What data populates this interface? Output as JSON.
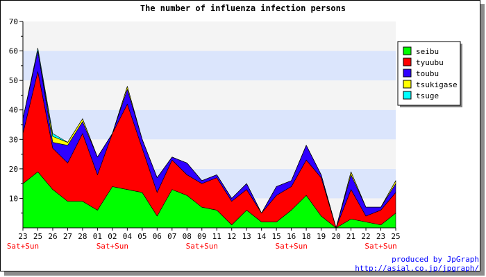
{
  "chart_data": {
    "type": "area",
    "stacked": true,
    "title": "The number of influenza infection persons",
    "xlabel": "",
    "ylabel": "",
    "ylim": [
      0,
      70
    ],
    "yticks": [
      10,
      20,
      30,
      40,
      50,
      60,
      70
    ],
    "categories": [
      "23",
      "25",
      "26",
      "27",
      "28",
      "01",
      "02",
      "04",
      "05",
      "06",
      "07",
      "08",
      "09",
      "11",
      "12",
      "13",
      "14",
      "15",
      "16",
      "18",
      "19",
      "20",
      "21",
      "22",
      "23",
      "25"
    ],
    "weekend_marks": [
      {
        "index": 0,
        "label": "Sat+Sun"
      },
      {
        "index": 6,
        "label": "Sat+Sun"
      },
      {
        "index": 12,
        "label": "Sat+Sun"
      },
      {
        "index": 18,
        "label": "Sat+Sun"
      },
      {
        "index": 24,
        "label": "Sat+Sun"
      }
    ],
    "series": [
      {
        "name": "seibu",
        "color": "#00ff00",
        "values": [
          15,
          19,
          13,
          9,
          9,
          6,
          14,
          13,
          12,
          4,
          13,
          11,
          7,
          6,
          1,
          6,
          2,
          2,
          6,
          11,
          4,
          0,
          3,
          2,
          1,
          5
        ]
      },
      {
        "name": "tyuubu",
        "color": "#ff0000",
        "values": [
          17,
          34,
          14,
          13,
          23,
          12,
          18,
          29,
          15,
          8,
          10,
          7,
          8,
          11,
          8,
          7,
          3,
          9,
          8,
          12,
          13,
          0,
          10,
          2,
          5,
          7
        ]
      },
      {
        "name": "toubu",
        "color": "#2f00ff",
        "values": [
          5,
          7,
          2,
          6,
          4,
          6,
          0,
          5,
          3,
          5,
          1,
          4,
          1,
          1,
          1,
          2,
          0,
          3,
          2,
          5,
          1,
          0,
          5,
          3,
          1,
          3
        ]
      },
      {
        "name": "tsukigase",
        "color": "#ffff00",
        "values": [
          0,
          0,
          2,
          1,
          1,
          0,
          0,
          1,
          0,
          0,
          0,
          0,
          0,
          0,
          0,
          0,
          0,
          0,
          0,
          0,
          0,
          0,
          1,
          0,
          0,
          1
        ]
      },
      {
        "name": "tsuge",
        "color": "#00ffff",
        "values": [
          0,
          1,
          1,
          0,
          0,
          0,
          0,
          0,
          0,
          0,
          0,
          0,
          0,
          0,
          0,
          0,
          0,
          0,
          0,
          0,
          0,
          0,
          0,
          0,
          0,
          0
        ]
      }
    ],
    "grid": true,
    "legend_position": "right"
  },
  "credits": {
    "line1": "produced by JpGraph",
    "line2": "http://asial.co.jp/jpgraph/"
  }
}
